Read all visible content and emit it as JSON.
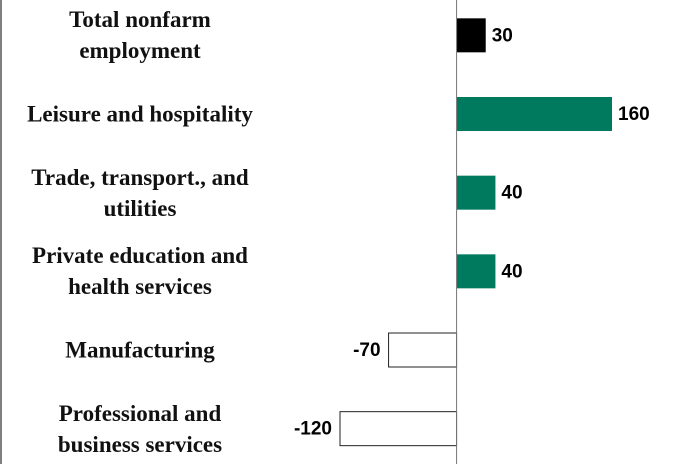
{
  "chart_data": {
    "type": "bar",
    "orientation": "horizontal",
    "categories": [
      "Total nonfarm employment",
      "Leisure and hospitality",
      "Trade, transport., and utilities",
      "Private education and health services",
      "Manufacturing",
      "Professional and business services"
    ],
    "values": [
      30,
      160,
      40,
      40,
      -70,
      -120
    ],
    "colors": [
      "#000000",
      "#007a5e",
      "#007a5e",
      "#007a5e",
      "#ffffff",
      "#ffffff"
    ],
    "xlim": [
      -470,
      230
    ]
  }
}
